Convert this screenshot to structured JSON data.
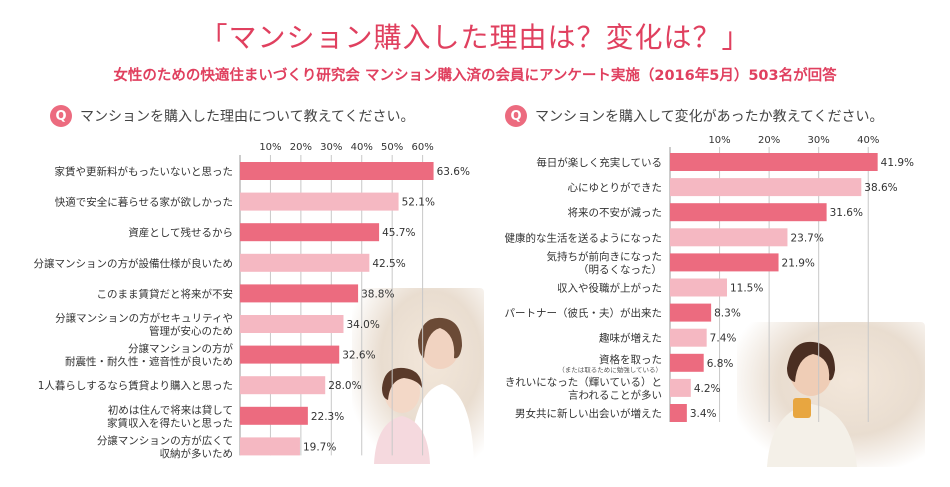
{
  "header": {
    "title": "「マンション購入した理由は？変化は？」",
    "subtitle": "女性のための快適住まいづくり研究会 マンション購入済の会員にアンケート実施（2016年5月）503名が回答"
  },
  "questions": {
    "left_badge": "Q",
    "left": "マンションを購入した理由について教えてください。",
    "right_badge": "Q",
    "right": "マンションを購入して変化があったか教えてください。"
  },
  "colors": {
    "accent": "#e0405f",
    "bar_dark": "#ec6b7f",
    "bar_light": "#f5b8c2",
    "axis": "#c8c8c8"
  },
  "chart_data": [
    {
      "type": "bar",
      "orientation": "horizontal",
      "categories": [
        [
          "家賃や更新料がもったいないと思った"
        ],
        [
          "快適で安全に暮らせる家が欲しかった"
        ],
        [
          "資産として残せるから"
        ],
        [
          "分譲マンションの方が設備仕様が良いため"
        ],
        [
          "このまま賃貸だと将来が不安"
        ],
        [
          "分譲マンションの方がセキュリティや",
          "管理が安心のため"
        ],
        [
          "分譲マンションの方が",
          "耐震性・耐久性・遮音性が良いため"
        ],
        [
          "1人暮らしするなら賃貸より購入と思った"
        ],
        [
          "初めは住んで将来は貸して",
          "家賃収入を得たいと思った"
        ],
        [
          "分譲マンションの方が広くて",
          "収納が多いため"
        ]
      ],
      "values": [
        63.6,
        52.1,
        45.7,
        42.5,
        38.8,
        34.0,
        32.6,
        28.0,
        22.3,
        19.7
      ],
      "value_labels": [
        "63.6%",
        "52.1%",
        "45.7%",
        "42.5%",
        "38.8%",
        "34.0%",
        "32.6%",
        "28.0%",
        "22.3%",
        "19.7%"
      ],
      "xticks": [
        "10%",
        "20%",
        "30%",
        "40%",
        "50%",
        "60%"
      ],
      "xtick_values": [
        10,
        20,
        30,
        40,
        50,
        60
      ],
      "xlim": [
        0,
        69
      ],
      "grid": true
    },
    {
      "type": "bar",
      "orientation": "horizontal",
      "categories": [
        [
          "毎日が楽しく充実している"
        ],
        [
          "心にゆとりができた"
        ],
        [
          "将来の不安が減った"
        ],
        [
          "健康的な生活を送るようになった"
        ],
        [
          "気持ちが前向きになった",
          "（明るくなった）"
        ],
        [
          "収入や役職が上がった"
        ],
        [
          "パートナー（彼氏・夫）が出来た"
        ],
        [
          "趣味が増えた"
        ],
        [
          "資格を取った"
        ],
        [
          "きれいになった（輝いている）と",
          "言われることが多い"
        ],
        [
          "男女共に新しい出会いが増えた"
        ]
      ],
      "category_notes": [
        "",
        "",
        "",
        "",
        "",
        "",
        "",
        "",
        "（または取るために勉強している）",
        "",
        ""
      ],
      "values": [
        41.9,
        38.6,
        31.6,
        23.7,
        21.9,
        11.5,
        8.3,
        7.4,
        6.8,
        4.2,
        3.4
      ],
      "value_labels": [
        "41.9%",
        "38.6%",
        "31.6%",
        "23.7%",
        "21.9%",
        "11.5%",
        "8.3%",
        "7.4%",
        "6.8%",
        "4.2%",
        "3.4%"
      ],
      "xticks": [
        "10%",
        "20%",
        "30%",
        "40%"
      ],
      "xtick_values": [
        10,
        20,
        30,
        40
      ],
      "xlim": [
        0,
        45.4
      ],
      "grid": true
    }
  ]
}
